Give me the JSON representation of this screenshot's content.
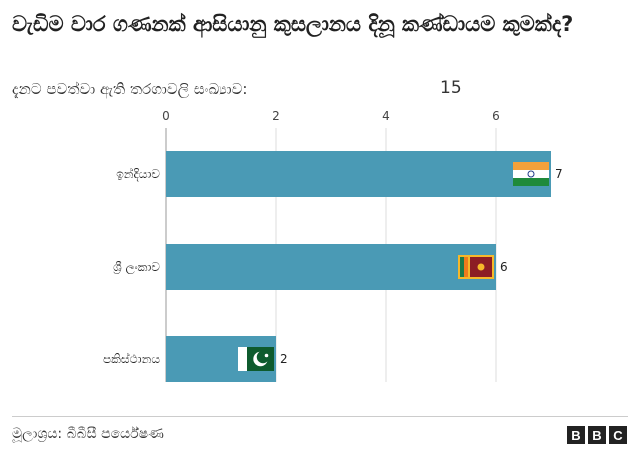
{
  "title": "වැඩිම වාර ගණනක් ආසියානු කුසලානය දිනූ කණ්ඩායම කුමක්ද?",
  "subtitle": "දැනට පවත්වා ඇති තරගාවලි සංඛ්‍යාව:",
  "total": "15",
  "source": "මූලාශ්‍රය: බීබීසී පර්යේෂණ",
  "logo": [
    "B",
    "B",
    "C"
  ],
  "colors": {
    "bar": "#4a9ab5",
    "grid": "#dddddd",
    "text": "#222222"
  },
  "chart_data": {
    "type": "bar",
    "orientation": "horizontal",
    "categories": [
      "ඉන්දියාව",
      "ශ්‍රී ලංකාව",
      "පකිස්ථානය"
    ],
    "values": [
      7,
      6,
      2
    ],
    "flags": [
      "india-flag-icon",
      "sri-lanka-flag-icon",
      "pakistan-flag-icon"
    ],
    "xticks": [
      0,
      2,
      4,
      6
    ],
    "xlim": [
      0,
      7.6
    ],
    "grid": true,
    "xlabel": "",
    "ylabel": ""
  }
}
